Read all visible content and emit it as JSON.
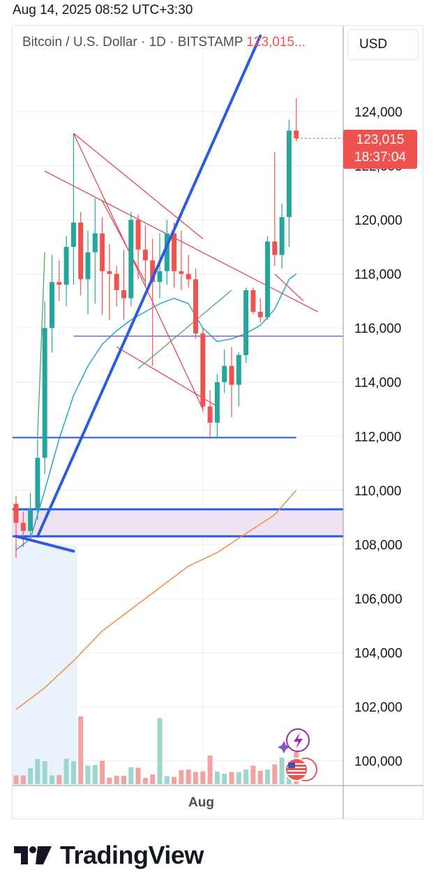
{
  "timestamp": "Aug 14, 2025 08:52 UTC+3:30",
  "header": {
    "symbol_title": "Bitcoin / U.S. Dollar · 1D · BITSTAMP",
    "last_price_text": "123,015...",
    "currency": "USD"
  },
  "price_tag": {
    "price": "123,015",
    "countdown": "18:37:04"
  },
  "x_axis_label": "Aug",
  "brand": {
    "name": "TradingView"
  },
  "colors": {
    "up": "#26a69a",
    "down": "#ef5350",
    "volume_up": "#9dd5cf",
    "volume_down": "#f2a3a1",
    "ema_fast": "#22a9c9",
    "ema_slow": "#f58a3c",
    "trendline": "#2b5ce0",
    "zone_fill": "#efe3f3",
    "grid": "#e9eef5"
  },
  "chart_data": {
    "type": "candlestick",
    "title": "Bitcoin / U.S. Dollar · 1D · BITSTAMP",
    "ylabel": "USD",
    "y_ticks": [
      100000,
      102000,
      104000,
      106000,
      108000,
      110000,
      112000,
      114000,
      116000,
      118000,
      120000,
      122000,
      124000
    ],
    "ylim": [
      99000,
      126500
    ],
    "x_tick_labels": [
      {
        "index": 26,
        "label": "Aug"
      }
    ],
    "candles": [
      {
        "o": 109500,
        "h": 109800,
        "l": 107500,
        "c": 108800
      },
      {
        "o": 108800,
        "h": 109200,
        "l": 107900,
        "c": 108500
      },
      {
        "o": 108500,
        "h": 109900,
        "l": 108300,
        "c": 109300
      },
      {
        "o": 109300,
        "h": 111900,
        "l": 108900,
        "c": 111200
      },
      {
        "o": 111200,
        "h": 117000,
        "l": 110600,
        "c": 116000
      },
      {
        "o": 116000,
        "h": 118700,
        "l": 115100,
        "c": 117700
      },
      {
        "o": 117700,
        "h": 118500,
        "l": 117000,
        "c": 117600
      },
      {
        "o": 117600,
        "h": 119400,
        "l": 116800,
        "c": 119000
      },
      {
        "o": 119000,
        "h": 123200,
        "l": 117600,
        "c": 119900
      },
      {
        "o": 119900,
        "h": 120300,
        "l": 117200,
        "c": 117800
      },
      {
        "o": 117800,
        "h": 119600,
        "l": 116500,
        "c": 118800
      },
      {
        "o": 118800,
        "h": 120800,
        "l": 116900,
        "c": 119500
      },
      {
        "o": 119500,
        "h": 120100,
        "l": 116500,
        "c": 118100
      },
      {
        "o": 118100,
        "h": 119100,
        "l": 116300,
        "c": 118000
      },
      {
        "o": 118000,
        "h": 118300,
        "l": 116800,
        "c": 117400
      },
      {
        "o": 117400,
        "h": 118900,
        "l": 116300,
        "c": 117100
      },
      {
        "o": 117100,
        "h": 120300,
        "l": 116800,
        "c": 120000
      },
      {
        "o": 120000,
        "h": 120200,
        "l": 117800,
        "c": 118900
      },
      {
        "o": 118900,
        "h": 119800,
        "l": 117500,
        "c": 118500
      },
      {
        "o": 118500,
        "h": 119300,
        "l": 114600,
        "c": 117700
      },
      {
        "o": 117700,
        "h": 119500,
        "l": 117100,
        "c": 118100
      },
      {
        "o": 118100,
        "h": 120000,
        "l": 117600,
        "c": 119500
      },
      {
        "o": 119500,
        "h": 119900,
        "l": 117500,
        "c": 118100
      },
      {
        "o": 118100,
        "h": 119600,
        "l": 117400,
        "c": 118000
      },
      {
        "o": 118000,
        "h": 118700,
        "l": 117500,
        "c": 117800
      },
      {
        "o": 117800,
        "h": 118200,
        "l": 115600,
        "c": 115800
      },
      {
        "o": 115800,
        "h": 116000,
        "l": 112900,
        "c": 113100
      },
      {
        "o": 113100,
        "h": 113700,
        "l": 111900,
        "c": 112500
      },
      {
        "o": 112500,
        "h": 114300,
        "l": 111900,
        "c": 114000
      },
      {
        "o": 114000,
        "h": 115200,
        "l": 113600,
        "c": 114600
      },
      {
        "o": 114600,
        "h": 115300,
        "l": 112700,
        "c": 113900
      },
      {
        "o": 113900,
        "h": 115100,
        "l": 113100,
        "c": 115000
      },
      {
        "o": 115000,
        "h": 117500,
        "l": 114700,
        "c": 117400
      },
      {
        "o": 117400,
        "h": 117500,
        "l": 116500,
        "c": 116600
      },
      {
        "o": 116600,
        "h": 117100,
        "l": 116200,
        "c": 116400
      },
      {
        "o": 116400,
        "h": 119400,
        "l": 116300,
        "c": 119200
      },
      {
        "o": 119200,
        "h": 122500,
        "l": 118300,
        "c": 118700
      },
      {
        "o": 118700,
        "h": 120600,
        "l": 118200,
        "c": 120100
      },
      {
        "o": 120100,
        "h": 123700,
        "l": 119000,
        "c": 123300
      },
      {
        "o": 123300,
        "h": 124500,
        "l": 122900,
        "c": 123015
      }
    ],
    "volume_relative": [
      0.25,
      0.25,
      0.46,
      0.72,
      0.66,
      0.25,
      0.26,
      0.73,
      0.66,
      1.94,
      0.53,
      0.55,
      0.67,
      0.19,
      0.24,
      0.24,
      0.49,
      0.47,
      0.18,
      0.28,
      1.89,
      0.23,
      0.21,
      0.4,
      0.42,
      0.35,
      0.37,
      0.82,
      0.36,
      0.3,
      0.35,
      0.35,
      0.42,
      0.53,
      0.38,
      0.42,
      0.57,
      0.76,
      0.38,
      0.92
    ],
    "ema_fast": [
      {
        "i": 0,
        "v": 107800
      },
      {
        "i": 2,
        "v": 108200
      },
      {
        "i": 4,
        "v": 110000
      },
      {
        "i": 6,
        "v": 111900
      },
      {
        "i": 8,
        "v": 113500
      },
      {
        "i": 10,
        "v": 114600
      },
      {
        "i": 12,
        "v": 115400
      },
      {
        "i": 14,
        "v": 115900
      },
      {
        "i": 16,
        "v": 116300
      },
      {
        "i": 18,
        "v": 116600
      },
      {
        "i": 20,
        "v": 116900
      },
      {
        "i": 22,
        "v": 117100
      },
      {
        "i": 24,
        "v": 116900
      },
      {
        "i": 26,
        "v": 116000
      },
      {
        "i": 28,
        "v": 115500
      },
      {
        "i": 30,
        "v": 115600
      },
      {
        "i": 32,
        "v": 115800
      },
      {
        "i": 34,
        "v": 116100
      },
      {
        "i": 36,
        "v": 116700
      },
      {
        "i": 38,
        "v": 117800
      },
      {
        "i": 39,
        "v": 118000
      }
    ],
    "ema_slow": [
      {
        "i": 0,
        "v": 101900
      },
      {
        "i": 4,
        "v": 102700
      },
      {
        "i": 8,
        "v": 103700
      },
      {
        "i": 12,
        "v": 104800
      },
      {
        "i": 16,
        "v": 105600
      },
      {
        "i": 20,
        "v": 106400
      },
      {
        "i": 24,
        "v": 107200
      },
      {
        "i": 28,
        "v": 107700
      },
      {
        "i": 32,
        "v": 108400
      },
      {
        "i": 36,
        "v": 109100
      },
      {
        "i": 39,
        "v": 110000
      }
    ],
    "annotations": {
      "horizontal_lines": [
        {
          "price": 115700,
          "color": "#7e57c2",
          "from": 8,
          "to": "right-edge"
        },
        {
          "price": 111950,
          "color": "#2b5ce0",
          "from": "left-edge",
          "to": 39
        }
      ],
      "support_zone": {
        "from_price": 108300,
        "to_price": 109300
      },
      "rising_trendline": [
        {
          "i": 3,
          "p": 108300
        },
        {
          "i": 34,
          "p": 126800
        }
      ],
      "short_blue_segment": [
        {
          "i": 0,
          "p": 108300
        },
        {
          "i": 8,
          "p": 107750
        }
      ],
      "descending_lines": [
        [
          {
            "i": 4,
            "p": 121800
          },
          {
            "i": 42,
            "p": 116600
          }
        ],
        [
          {
            "i": 8,
            "p": 123200
          },
          {
            "i": 26,
            "p": 119300
          }
        ],
        [
          {
            "i": 8,
            "p": 123200
          },
          {
            "i": 26,
            "p": 113000
          }
        ],
        [
          {
            "i": 12,
            "p": 120700
          },
          {
            "i": 18,
            "p": 117700
          }
        ],
        [
          {
            "i": 14,
            "p": 115300
          },
          {
            "i": 28,
            "p": 113100
          }
        ],
        [
          {
            "i": 36,
            "p": 118000
          },
          {
            "i": 40,
            "p": 117000
          }
        ]
      ],
      "green_arrows": [
        [
          {
            "i": 3,
            "p": 112000
          },
          {
            "i": 4,
            "p": 118800
          }
        ],
        [
          {
            "i": 17,
            "p": 114500
          },
          {
            "i": 30,
            "p": 117400
          }
        ]
      ]
    }
  }
}
